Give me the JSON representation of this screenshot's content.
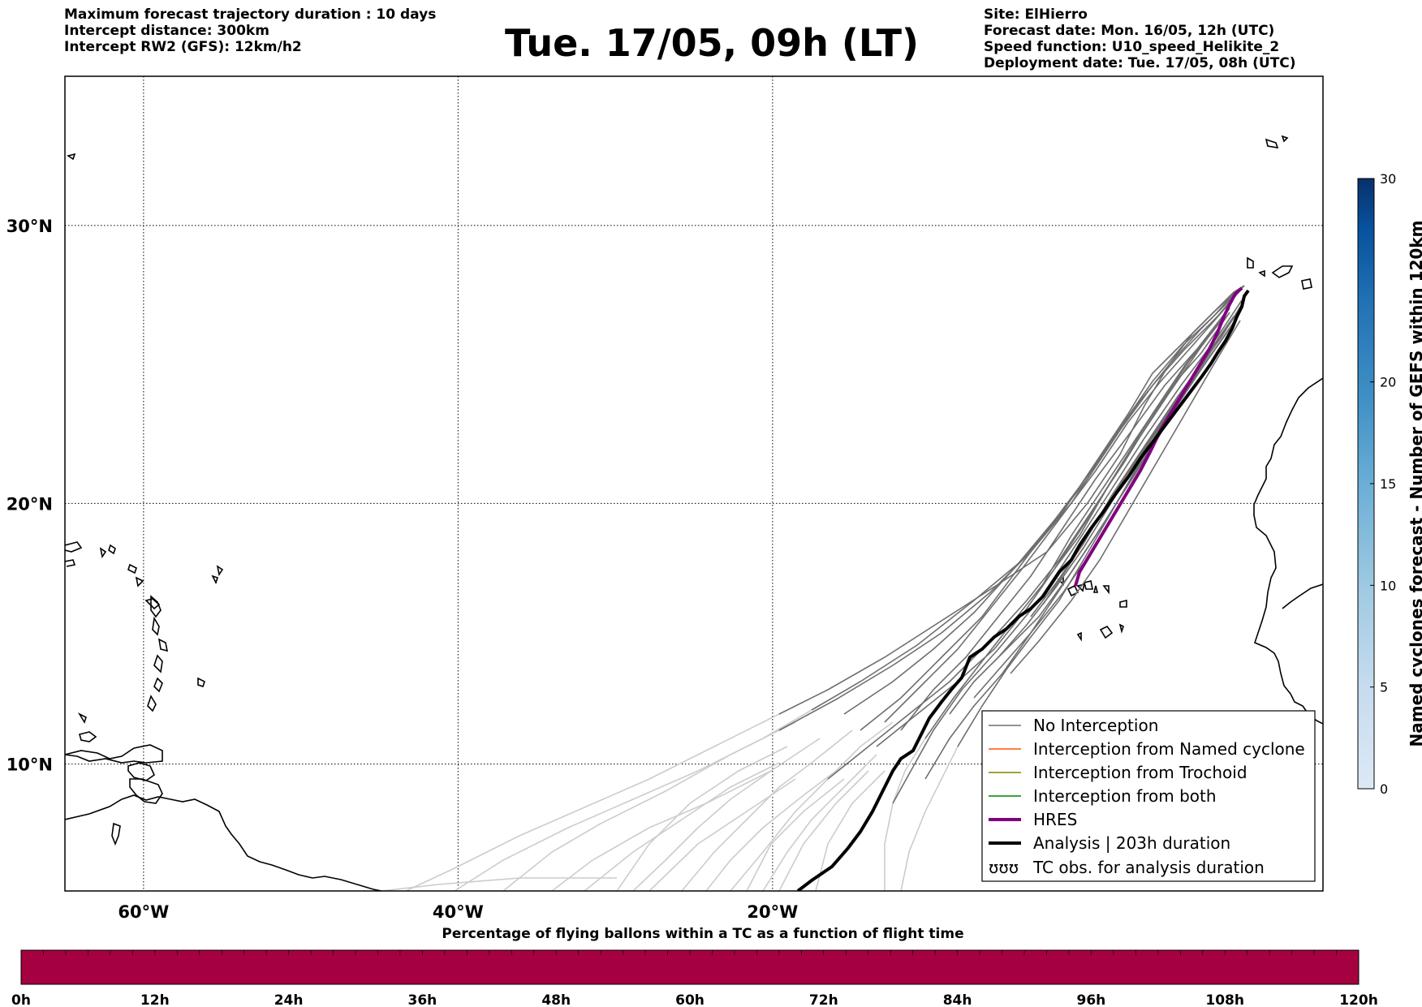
{
  "header": {
    "left_lines": [
      "Maximum forecast trajectory duration : 10 days",
      "Intercept distance: 300km",
      "Intercept RW2 (GFS):  12km/h2"
    ],
    "title": "Tue. 17/05, 09h (LT)",
    "right_lines": [
      "Site: ElHierro",
      "Forecast date: Mon. 16/05, 12h (UTC)",
      "Speed function: U10_speed_Helikite_2",
      "Deployment date: Tue. 17/05, 08h (UTC)"
    ]
  },
  "map": {
    "lon_range": [
      -65,
      15
    ],
    "lat_range": [
      5,
      35
    ],
    "lon_ticks": [
      {
        "value": -60,
        "label": "60°W"
      },
      {
        "value": -40,
        "label": "40°W"
      },
      {
        "value": -20,
        "label": "20°W"
      }
    ],
    "lat_ticks": [
      {
        "value": 30,
        "label": "30°N"
      },
      {
        "value": 20,
        "label": "20°N"
      },
      {
        "value": 10,
        "label": "10°N"
      }
    ],
    "grid": "dotted",
    "colors": {
      "no_interception": "#6e6e6e",
      "light_track": "#cccccc",
      "named_cyclone": "#ff5500",
      "trochoid": "#808000",
      "both": "#008000",
      "hres": "#800080",
      "analysis": "#000000"
    },
    "legend": [
      {
        "label": "No Interception",
        "color": "#6e6e6e",
        "style": "thin"
      },
      {
        "label": "Interception from Named cyclone",
        "color": "#ff5500",
        "style": "thin"
      },
      {
        "label": "Interception from Trochoid",
        "color": "#808000",
        "style": "thin"
      },
      {
        "label": "Interception from both",
        "color": "#008000",
        "style": "thin"
      },
      {
        "label": "HRES",
        "color": "#800080",
        "style": "thick"
      },
      {
        "label": "Analysis | 203h duration",
        "color": "#000000",
        "style": "thick"
      },
      {
        "label": "TC obs. for analysis duration",
        "color": "#000000",
        "style": "marker",
        "marker_text": "ʊʊʊ"
      }
    ],
    "legend_position": "lower-right"
  },
  "colorbar_right": {
    "label": "Named cyclones forecast - Number of GEFS within 120km",
    "ticks": [
      "0",
      "5",
      "10",
      "15",
      "20",
      "30"
    ],
    "range": [
      0,
      30
    ],
    "colors": [
      "#dce9f6",
      "#c6dbef",
      "#9ecae1",
      "#6baed6",
      "#4292c6",
      "#2171b5",
      "#08519c",
      "#08306b"
    ]
  },
  "colorbar_bottom": {
    "title": "Percentage of flying ballons within a TC as a function of flight time",
    "ticks": [
      "0h",
      "12h",
      "24h",
      "36h",
      "48h",
      "60h",
      "72h",
      "84h",
      "96h",
      "108h",
      "120h"
    ],
    "fill_color": "#a50040"
  }
}
